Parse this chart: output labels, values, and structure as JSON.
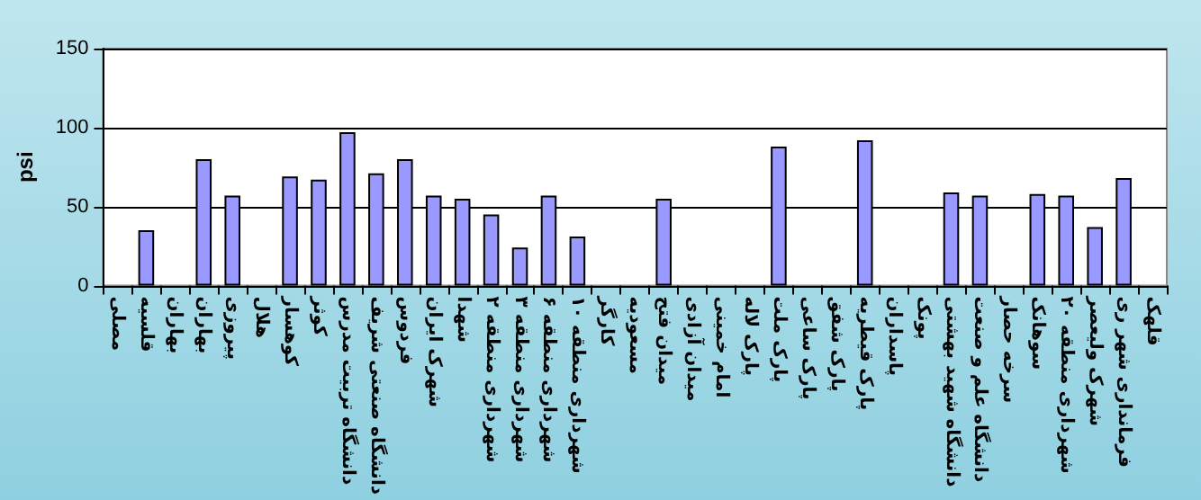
{
  "chart_data": {
    "type": "bar",
    "ylabel": "psi",
    "categories": [
      "مصلی",
      "قلسیه",
      "بهاران",
      "بهاران",
      "پیروزی",
      "هلال",
      "کوهسار",
      "کوثر",
      "دانشگاه تربیت مدرس",
      "دانشگاه صنعتی شریف",
      "فردوس",
      "شهرک ایران",
      "شهدا",
      "شهرداری منطقه ۲",
      "شهرداری منطقه ۳",
      "شهرداری منطقه ۶",
      "شهرداری منطقه ۱۰",
      "کارگر",
      "مسعودیه",
      "میدان فتح",
      "میدان آزادی",
      "امام خمینی",
      "پارک لاله",
      "پارک ملت",
      "پارک ساعی",
      "پارک شفق",
      "پارک قیطریه",
      "پاسداران",
      "پونک",
      "دانشگاه شهید بهشتی",
      "دانشگاه علم و صنعت",
      "سرخه حصار",
      "سوهانک",
      "شهرداری منطقه ۲۰",
      "شهرک ولیعصر",
      "فرمانداری شهر ری",
      "قلهک"
    ],
    "values": [
      null,
      35,
      null,
      80,
      57,
      null,
      69,
      67,
      97,
      71,
      80,
      57,
      55,
      45,
      24,
      57,
      31,
      null,
      null,
      55,
      null,
      null,
      null,
      88,
      null,
      null,
      92,
      null,
      null,
      59,
      57,
      null,
      58,
      57,
      37,
      68,
      null
    ],
    "color": "#9999ff",
    "ylim": [
      0,
      150
    ],
    "yticks": [
      0,
      50,
      100,
      150
    ],
    "grid": "y"
  }
}
